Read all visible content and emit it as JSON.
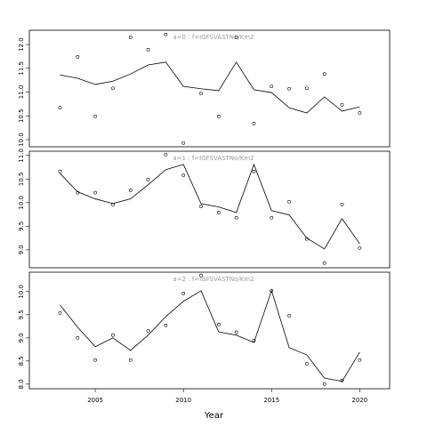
{
  "chart_data": [
    {
      "type": "line_scatter",
      "annotation": "a=0  :  f=IGFSVASTNo/Km2",
      "x": [
        2003,
        2004,
        2005,
        2006,
        2007,
        2008,
        2009,
        2010,
        2011,
        2012,
        2013,
        2014,
        2015,
        2016,
        2017,
        2018,
        2019,
        2020
      ],
      "xlim": [
        2001.26,
        2021.7
      ],
      "ylim": [
        9.85,
        12.3
      ],
      "yticks": [
        {
          "value": 10,
          "label": "10.0"
        },
        10.5,
        {
          "value": 11,
          "label": "11.0"
        },
        11.5,
        {
          "value": 12,
          "label": "12.0"
        }
      ],
      "series": [
        {
          "kind": "line",
          "color": "#000000",
          "values": [
            11.36,
            11.29,
            11.16,
            11.23,
            11.38,
            11.57,
            11.63,
            11.12,
            11.07,
            11.03,
            11.63,
            11.05,
            10.99,
            10.67,
            10.56,
            10.9,
            10.6,
            10.69
          ]
        },
        {
          "kind": "scatter",
          "color": "#000000",
          "values": [
            10.67,
            11.74,
            10.49,
            11.08,
            12.15,
            11.89,
            12.21,
            9.93,
            10.97,
            10.49,
            12.15,
            10.34,
            11.12,
            11.07,
            11.08,
            11.38,
            10.73,
            10.56
          ]
        }
      ]
    },
    {
      "type": "line_scatter",
      "annotation": "a=1  :  f=IGFSVASTNo/Km2",
      "x": [
        2003,
        2004,
        2005,
        2006,
        2007,
        2008,
        2009,
        2010,
        2011,
        2012,
        2013,
        2014,
        2015,
        2016,
        2017,
        2018,
        2019,
        2020
      ],
      "xlim": [
        2001.26,
        2021.7
      ],
      "ylim": [
        8.62,
        11.09
      ],
      "yticks": [
        {
          "value": 9,
          "label": "9.0"
        },
        9.5,
        {
          "value": 10,
          "label": "10.0"
        },
        10.5,
        {
          "value": 11,
          "label": "11.0"
        }
      ],
      "series": [
        {
          "kind": "line",
          "color": "#000000",
          "values": [
            10.62,
            10.23,
            10.08,
            9.98,
            10.08,
            10.38,
            10.7,
            10.81,
            9.98,
            9.91,
            9.79,
            10.81,
            9.83,
            9.74,
            9.25,
            9.02,
            9.66,
            9.13
          ]
        },
        {
          "kind": "scatter",
          "color": "#000000",
          "values": [
            10.66,
            10.21,
            10.21,
            9.96,
            10.26,
            10.49,
            11.02,
            10.58,
            9.92,
            9.79,
            9.68,
            10.66,
            9.68,
            10.02,
            9.23,
            8.72,
            9.96,
            9.04
          ]
        }
      ]
    },
    {
      "type": "line_scatter",
      "annotation": "a=2  :  f=IGFSVASTNo/Km2",
      "xlabel": "Year",
      "x": [
        2003,
        2004,
        2005,
        2006,
        2007,
        2008,
        2009,
        2010,
        2011,
        2012,
        2013,
        2014,
        2015,
        2016,
        2017,
        2018,
        2019,
        2020
      ],
      "xlim": [
        2001.26,
        2021.7
      ],
      "xticks": [
        2005,
        2010,
        2015,
        2020
      ],
      "ylim": [
        7.9,
        10.42
      ],
      "yticks": [
        {
          "value": 8,
          "label": "8.0"
        },
        8.5,
        {
          "value": 9,
          "label": "9.0"
        },
        9.5,
        {
          "value": 10,
          "label": "10.0"
        }
      ],
      "series": [
        {
          "kind": "line",
          "color": "#000000",
          "values": [
            9.71,
            9.23,
            8.81,
            9.0,
            8.73,
            9.06,
            9.46,
            9.79,
            10.02,
            9.13,
            9.06,
            8.9,
            10.02,
            8.79,
            8.63,
            8.13,
            8.06,
            8.69
          ]
        },
        {
          "kind": "scatter",
          "color": "#000000",
          "values": [
            9.54,
            9.0,
            8.52,
            9.06,
            8.52,
            9.15,
            9.27,
            9.96,
            10.35,
            9.29,
            9.12,
            8.94,
            10.02,
            9.48,
            8.44,
            8.0,
            8.08,
            8.52
          ]
        }
      ]
    }
  ]
}
